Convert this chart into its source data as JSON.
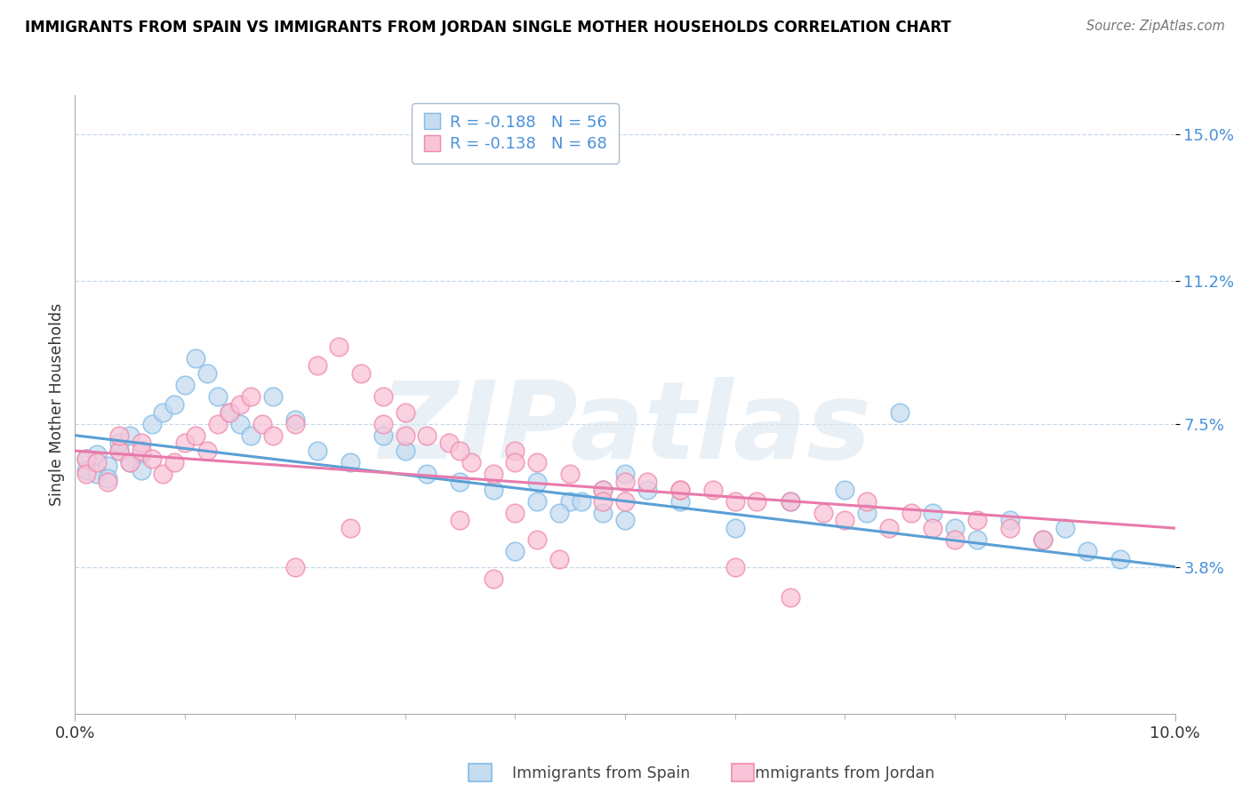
{
  "title": "IMMIGRANTS FROM SPAIN VS IMMIGRANTS FROM JORDAN SINGLE MOTHER HOUSEHOLDS CORRELATION CHART",
  "source": "Source: ZipAtlas.com",
  "ylabel_label": "Single Mother Households",
  "legend_spain": "R = -0.188   N = 56",
  "legend_jordan": "R = -0.138   N = 68",
  "legend_label_spain": "Immigrants from Spain",
  "legend_label_jordan": "Immigrants from Jordan",
  "color_spain_fill": "#c6dcf0",
  "color_spain_edge": "#7fbce8",
  "color_jordan_fill": "#f9c4d8",
  "color_jordan_edge": "#f08aaa",
  "color_spain_line": "#5b9fd4",
  "color_jordan_line": "#e87aaa",
  "watermark": "ZIPatlas",
  "spain_scatter_x": [
    0.001,
    0.001,
    0.002,
    0.002,
    0.003,
    0.003,
    0.004,
    0.004,
    0.005,
    0.005,
    0.006,
    0.006,
    0.007,
    0.008,
    0.009,
    0.01,
    0.011,
    0.012,
    0.013,
    0.014,
    0.015,
    0.016,
    0.018,
    0.02,
    0.022,
    0.025,
    0.028,
    0.03,
    0.032,
    0.035,
    0.038,
    0.042,
    0.045,
    0.048,
    0.05,
    0.052,
    0.055,
    0.06,
    0.065,
    0.07,
    0.072,
    0.075,
    0.078,
    0.08,
    0.082,
    0.085,
    0.088,
    0.09,
    0.092,
    0.05,
    0.048,
    0.046,
    0.044,
    0.042,
    0.04,
    0.095
  ],
  "spain_scatter_y": [
    0.066,
    0.063,
    0.067,
    0.062,
    0.064,
    0.061,
    0.068,
    0.07,
    0.065,
    0.072,
    0.067,
    0.063,
    0.075,
    0.078,
    0.08,
    0.085,
    0.092,
    0.088,
    0.082,
    0.078,
    0.075,
    0.072,
    0.082,
    0.076,
    0.068,
    0.065,
    0.072,
    0.068,
    0.062,
    0.06,
    0.058,
    0.06,
    0.055,
    0.052,
    0.05,
    0.058,
    0.055,
    0.048,
    0.055,
    0.058,
    0.052,
    0.078,
    0.052,
    0.048,
    0.045,
    0.05,
    0.045,
    0.048,
    0.042,
    0.062,
    0.058,
    0.055,
    0.052,
    0.055,
    0.042,
    0.04
  ],
  "jordan_scatter_x": [
    0.001,
    0.001,
    0.002,
    0.003,
    0.004,
    0.004,
    0.005,
    0.006,
    0.006,
    0.007,
    0.008,
    0.009,
    0.01,
    0.011,
    0.012,
    0.013,
    0.014,
    0.015,
    0.016,
    0.017,
    0.018,
    0.02,
    0.022,
    0.024,
    0.026,
    0.028,
    0.03,
    0.032,
    0.034,
    0.036,
    0.038,
    0.04,
    0.042,
    0.045,
    0.048,
    0.05,
    0.052,
    0.055,
    0.058,
    0.06,
    0.062,
    0.065,
    0.068,
    0.07,
    0.072,
    0.074,
    0.076,
    0.078,
    0.08,
    0.082,
    0.085,
    0.088,
    0.028,
    0.03,
    0.035,
    0.04,
    0.05,
    0.055,
    0.048,
    0.04,
    0.035,
    0.025,
    0.02,
    0.042,
    0.044,
    0.038,
    0.06,
    0.065
  ],
  "jordan_scatter_y": [
    0.066,
    0.062,
    0.065,
    0.06,
    0.068,
    0.072,
    0.065,
    0.07,
    0.068,
    0.066,
    0.062,
    0.065,
    0.07,
    0.072,
    0.068,
    0.075,
    0.078,
    0.08,
    0.082,
    0.075,
    0.072,
    0.075,
    0.09,
    0.095,
    0.088,
    0.082,
    0.078,
    0.072,
    0.07,
    0.065,
    0.062,
    0.068,
    0.065,
    0.062,
    0.058,
    0.055,
    0.06,
    0.058,
    0.058,
    0.055,
    0.055,
    0.055,
    0.052,
    0.05,
    0.055,
    0.048,
    0.052,
    0.048,
    0.045,
    0.05,
    0.048,
    0.045,
    0.075,
    0.072,
    0.068,
    0.065,
    0.06,
    0.058,
    0.055,
    0.052,
    0.05,
    0.048,
    0.038,
    0.045,
    0.04,
    0.035,
    0.038,
    0.03
  ],
  "xlim": [
    0.0,
    0.1
  ],
  "ylim": [
    0.0,
    0.16
  ],
  "ytick_positions": [
    0.038,
    0.075,
    0.112,
    0.15
  ],
  "ytick_labels": [
    "3.8%",
    "7.5%",
    "11.2%",
    "15.0%"
  ],
  "xtick_positions": [
    0.0,
    0.1
  ],
  "xtick_labels": [
    "0.0%",
    "10.0%"
  ],
  "spain_line_x": [
    0.0,
    0.1
  ],
  "spain_line_y": [
    0.072,
    0.038
  ],
  "jordan_line_x": [
    0.0,
    0.1
  ],
  "jordan_line_y": [
    0.068,
    0.048
  ]
}
